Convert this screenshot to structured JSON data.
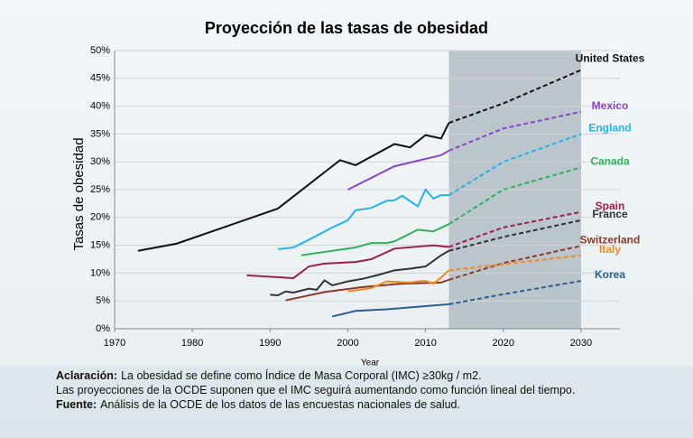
{
  "chart_data": {
    "type": "line",
    "title": "Proyección de las tasas de obesidad",
    "x_label": "Year",
    "y_label": "Tasas de obesidad",
    "xlim": [
      1970,
      2035
    ],
    "xticks": [
      1970,
      1980,
      1990,
      2000,
      2010,
      2020,
      2030
    ],
    "ylim": [
      0,
      50
    ],
    "yticks": [
      {
        "value": 0,
        "label": "0%"
      },
      {
        "value": 5,
        "label": "5%"
      },
      {
        "value": 10,
        "label": "10%"
      },
      {
        "value": 15,
        "label": "15%"
      },
      {
        "value": 20,
        "label": "20%"
      },
      {
        "value": 25,
        "label": "25%"
      },
      {
        "value": 30,
        "label": "30%"
      },
      {
        "value": 35,
        "label": "35%"
      },
      {
        "value": 40,
        "label": "40%"
      },
      {
        "value": 45,
        "label": "45%"
      },
      {
        "value": 50,
        "label": "50%"
      }
    ],
    "grid": true,
    "projection_region": [
      2013,
      2030
    ],
    "series": [
      {
        "name": "United States",
        "color": "#111111",
        "x": [
          1973,
          1978,
          1991,
          1999,
          2001,
          2006,
          2008,
          2010,
          2012,
          2013,
          2020,
          2030
        ],
        "values": [
          14,
          15.3,
          21.6,
          30.3,
          29.4,
          33.2,
          32.6,
          34.8,
          34.2,
          37,
          40.5,
          46.5
        ]
      },
      {
        "name": "Mexico",
        "color": "#8a45c6",
        "x": [
          2000,
          2006,
          2012,
          2013,
          2020,
          2030
        ],
        "values": [
          25,
          29.2,
          31.2,
          32,
          36,
          39
        ]
      },
      {
        "name": "England",
        "color": "#1fb5ea",
        "x": [
          1991,
          1993,
          1995,
          1998,
          2000,
          2001,
          2003,
          2005,
          2006,
          2007,
          2009,
          2010,
          2011,
          2012,
          2013,
          2020,
          2030
        ],
        "values": [
          14.3,
          14.6,
          16,
          18.2,
          19.5,
          21.3,
          21.7,
          23,
          23.1,
          23.9,
          22,
          25,
          23.4,
          24,
          24,
          30,
          35
        ]
      },
      {
        "name": "Canada",
        "color": "#2cb35a",
        "x": [
          1994,
          2001,
          2003,
          2005,
          2006,
          2009,
          2011,
          2013,
          2020,
          2030
        ],
        "values": [
          13.2,
          14.6,
          15.4,
          15.4,
          15.7,
          17.8,
          17.5,
          18.8,
          25,
          29
        ]
      },
      {
        "name": "Spain",
        "color": "#9c1f4e",
        "x": [
          1987,
          1993,
          1995,
          1997,
          2001,
          2003,
          2006,
          2011,
          2013,
          2020,
          2030
        ],
        "values": [
          9.6,
          9.1,
          11.2,
          11.7,
          12,
          12.5,
          14.4,
          15,
          14.7,
          18.2,
          21
        ]
      },
      {
        "name": "France",
        "color": "#333333",
        "x": [
          1990,
          1991,
          1992,
          1993,
          1995,
          1996,
          1997,
          1998,
          2000,
          2002,
          2004,
          2006,
          2008,
          2010,
          2012,
          2013,
          2020,
          2030
        ],
        "values": [
          6.1,
          6,
          6.7,
          6.5,
          7.2,
          7,
          8.7,
          7.8,
          8.5,
          9,
          9.7,
          10.5,
          10.8,
          11.2,
          13.2,
          14,
          16.5,
          19.5
        ]
      },
      {
        "name": "Switzerland",
        "color": "#8b3a2a",
        "x": [
          1992,
          1997,
          2002,
          2007,
          2012,
          2013,
          2020,
          2030
        ],
        "values": [
          5.1,
          6.6,
          7.5,
          8.1,
          8.3,
          8.8,
          11.8,
          14.9
        ]
      },
      {
        "name": "Italy",
        "color": "#f08a24",
        "x": [
          2000,
          2003,
          2005,
          2008,
          2009,
          2010,
          2011,
          2012,
          2013,
          2020,
          2030
        ],
        "values": [
          6.7,
          7.3,
          8.5,
          8.3,
          8.5,
          8.6,
          8.1,
          9.2,
          10.5,
          11.6,
          13.2
        ]
      },
      {
        "name": "Korea",
        "color": "#2c5f8e",
        "x": [
          1998,
          2001,
          2005,
          2013,
          2020,
          2030
        ],
        "values": [
          2.2,
          3.2,
          3.5,
          4.4,
          6.2,
          8.6
        ]
      }
    ]
  },
  "notes": [
    {
      "bold": "Aclaración:",
      "text": "La obesidad se define como Índice de Masa Corporal (IMC) ≥30kg / m2."
    },
    {
      "text": "Las proyecciones de la OCDE suponen que el IMC seguirá aumentando como función lineal del tiempo."
    },
    {
      "bold": "Fuente:",
      "text": "Análisis de la OCDE de los datos de las encuestas nacionales de salud."
    }
  ]
}
